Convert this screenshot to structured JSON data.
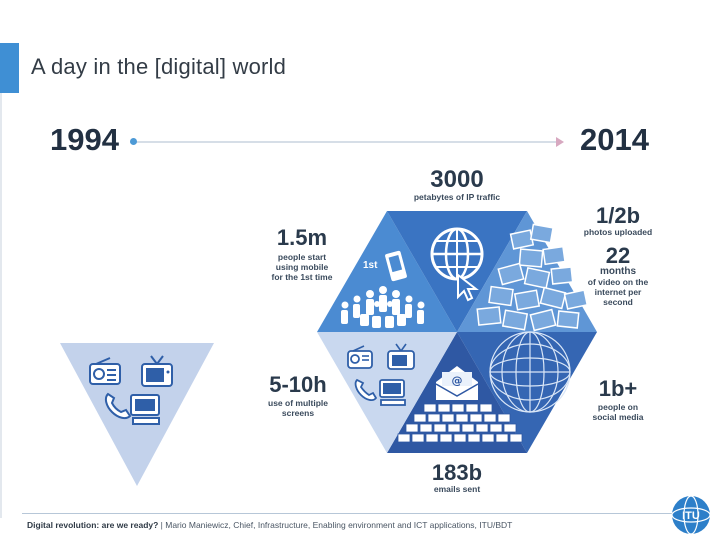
{
  "title": "A day in the [digital] world",
  "timeline": {
    "start_year": "1994",
    "end_year": "2014"
  },
  "stats": {
    "ip_traffic": {
      "value": "3000",
      "label": "petabytes of IP traffic"
    },
    "mobile": {
      "value": "1.5m",
      "label": "people start\nusing mobile\nfor the 1st time"
    },
    "photos": {
      "value": "1/2b",
      "label": "photos uploaded"
    },
    "video": {
      "value": "22",
      "unit": "months",
      "label": "of video on the\ninternet per\nsecond"
    },
    "screens": {
      "value": "5-10h",
      "label": "use of multiple\nscreens"
    },
    "social": {
      "value": "1b+",
      "label": "people on\nsocial media"
    },
    "emails": {
      "value": "183b",
      "label": "emails sent"
    }
  },
  "first_marker": "1st",
  "footer": {
    "bold": "Digital revolution: are we ready?",
    "rest": " | Mario Maniewicz, Chief, Infrastructure, Enabling environment and ICT applications, ITU/BDT"
  },
  "logo": {
    "text": "ITU"
  },
  "icons": [
    "radio-icon",
    "tv-icon",
    "phone-icon",
    "computer-icon",
    "globe-icon",
    "cursor-icon",
    "mobile-phone-icon",
    "crowd-icon",
    "envelope-icon",
    "photos-icon",
    "people-sphere-icon"
  ],
  "colors": {
    "accent": "#3f8fd4",
    "hex_dark": "#2f64b0",
    "hex_mid": "#4f88cf",
    "hex_light": "#c6d6ee",
    "triangle": "#c3d2eb",
    "navy": "#223042"
  }
}
